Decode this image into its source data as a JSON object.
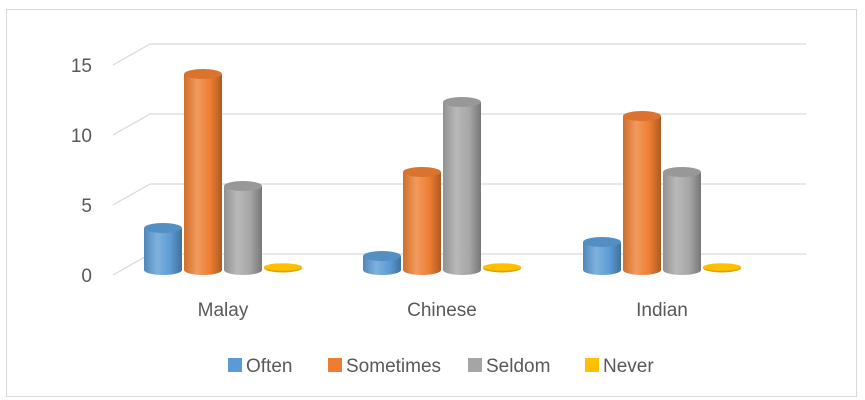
{
  "chart_data": {
    "type": "bar",
    "style": "3d-column",
    "title": "",
    "xlabel": "",
    "ylabel": "",
    "categories": [
      "Malay",
      "Chinese",
      "Indian"
    ],
    "series": [
      {
        "name": "Often",
        "values": [
          3,
          1,
          2
        ],
        "color": "#5b9bd5"
      },
      {
        "name": "Sometimes",
        "values": [
          14,
          7,
          11
        ],
        "color": "#ed7d31"
      },
      {
        "name": "Seldom",
        "values": [
          6,
          12,
          7
        ],
        "color": "#a5a5a5"
      },
      {
        "name": "Never",
        "values": [
          0,
          0,
          0
        ],
        "color": "#ffc000"
      }
    ],
    "ylim": [
      0,
      15
    ],
    "yticks": [
      0,
      5,
      10,
      15
    ],
    "grid": true,
    "legend": "bottom"
  }
}
